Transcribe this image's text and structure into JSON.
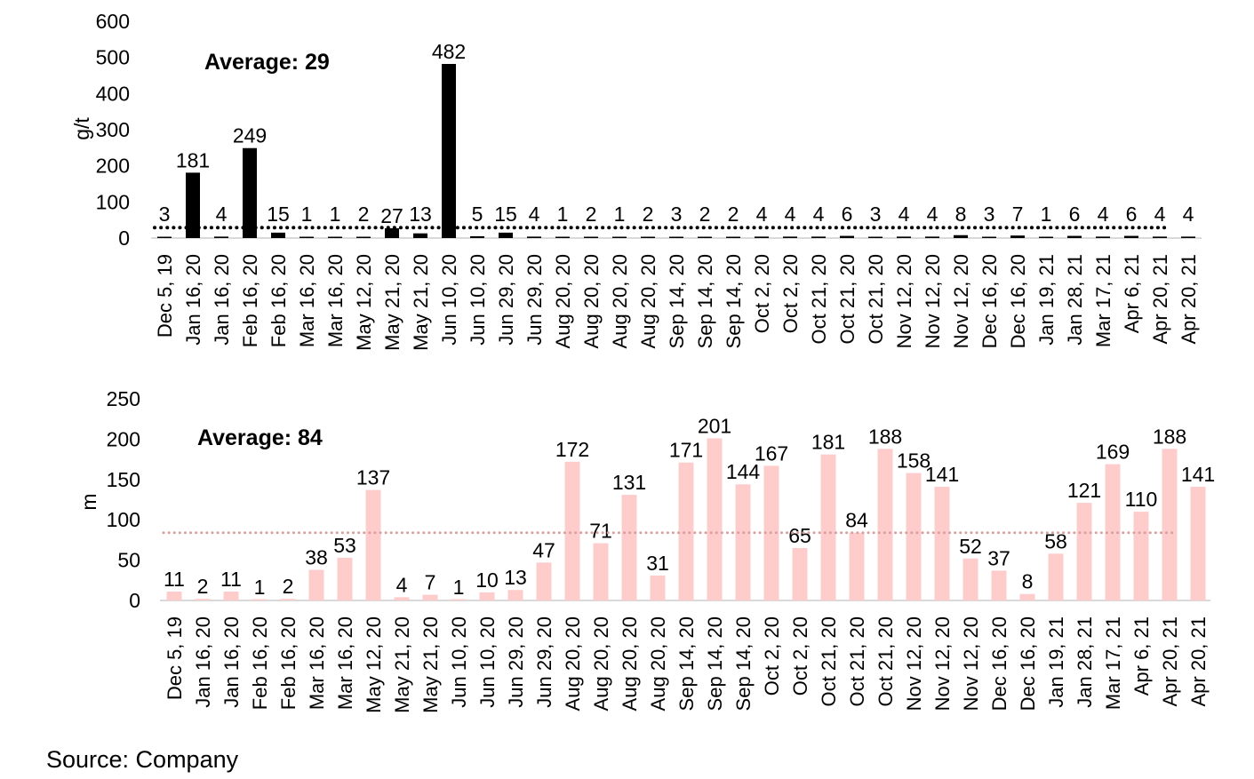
{
  "source": "Source: Company",
  "chart_data": [
    {
      "type": "bar",
      "ylabel": "g/t",
      "ylim": [
        0,
        600
      ],
      "yticks": [
        "0",
        "100",
        "200",
        "300",
        "400",
        "500",
        "600"
      ],
      "average_label": "Average: 29",
      "average": 29,
      "bar_color": "#000000",
      "avg_line_color": "#000000",
      "categories": [
        "Dec 5, 19",
        "Jan 16, 20",
        "Jan 16, 20",
        "Feb 16, 20",
        "Feb 16, 20",
        "Mar 16, 20",
        "Mar 16, 20",
        "May 12, 20",
        "May 21, 20",
        "May 21, 20",
        "Jun 10, 20",
        "Jun 10, 20",
        "Jun 29, 20",
        "Jun 29, 20",
        "Aug 20, 20",
        "Aug 20, 20",
        "Aug 20, 20",
        "Aug 20, 20",
        "Sep 14, 20",
        "Sep 14, 20",
        "Sep 14, 20",
        "Oct 2, 20",
        "Oct 2, 20",
        "Oct 21, 20",
        "Oct 21, 20",
        "Oct 21, 20",
        "Nov 12, 20",
        "Nov 12, 20",
        "Nov 12, 20",
        "Dec 16, 20",
        "Dec 16, 20",
        "Jan 19, 21",
        "Jan 28, 21",
        "Mar 17, 21",
        "Apr 6, 21",
        "Apr 20, 21",
        "Apr 20, 21"
      ],
      "values": [
        3,
        181,
        4,
        249,
        15,
        1,
        1,
        2,
        27,
        13,
        482,
        5,
        15,
        4,
        1,
        2,
        1,
        2,
        3,
        2,
        2,
        4,
        4,
        4,
        6,
        3,
        4,
        4,
        8,
        3,
        7,
        1,
        6,
        4,
        6,
        4,
        4
      ]
    },
    {
      "type": "bar",
      "ylabel": "m",
      "ylim": [
        0,
        250
      ],
      "yticks": [
        "0",
        "50",
        "100",
        "150",
        "200",
        "250"
      ],
      "average_label": "Average: 84",
      "average": 84,
      "bar_color": "#FFCCCC",
      "avg_line_color": "#D9A0A0",
      "categories": [
        "Dec 5, 19",
        "Jan 16, 20",
        "Jan 16, 20",
        "Feb 16, 20",
        "Feb 16, 20",
        "Mar 16, 20",
        "Mar 16, 20",
        "May 12, 20",
        "May 21, 20",
        "May 21, 20",
        "Jun 10, 20",
        "Jun 10, 20",
        "Jun 29, 20",
        "Jun 29, 20",
        "Aug 20, 20",
        "Aug 20, 20",
        "Aug 20, 20",
        "Aug 20, 20",
        "Sep 14, 20",
        "Sep 14, 20",
        "Sep 14, 20",
        "Oct 2, 20",
        "Oct 2, 20",
        "Oct 21, 20",
        "Oct 21, 20",
        "Oct 21, 20",
        "Nov 12, 20",
        "Nov 12, 20",
        "Nov 12, 20",
        "Dec 16, 20",
        "Dec 16, 20",
        "Jan 19, 21",
        "Jan 28, 21",
        "Mar 17, 21",
        "Apr 6, 21",
        "Apr 20, 21",
        "Apr 20, 21"
      ],
      "values": [
        11,
        2,
        11,
        1,
        2,
        38,
        53,
        137,
        4,
        7,
        1,
        10,
        13,
        47,
        172,
        71,
        131,
        31,
        171,
        201,
        144,
        167,
        65,
        181,
        84,
        188,
        158,
        141,
        52,
        37,
        8,
        58,
        121,
        169,
        110,
        188,
        141
      ]
    }
  ]
}
